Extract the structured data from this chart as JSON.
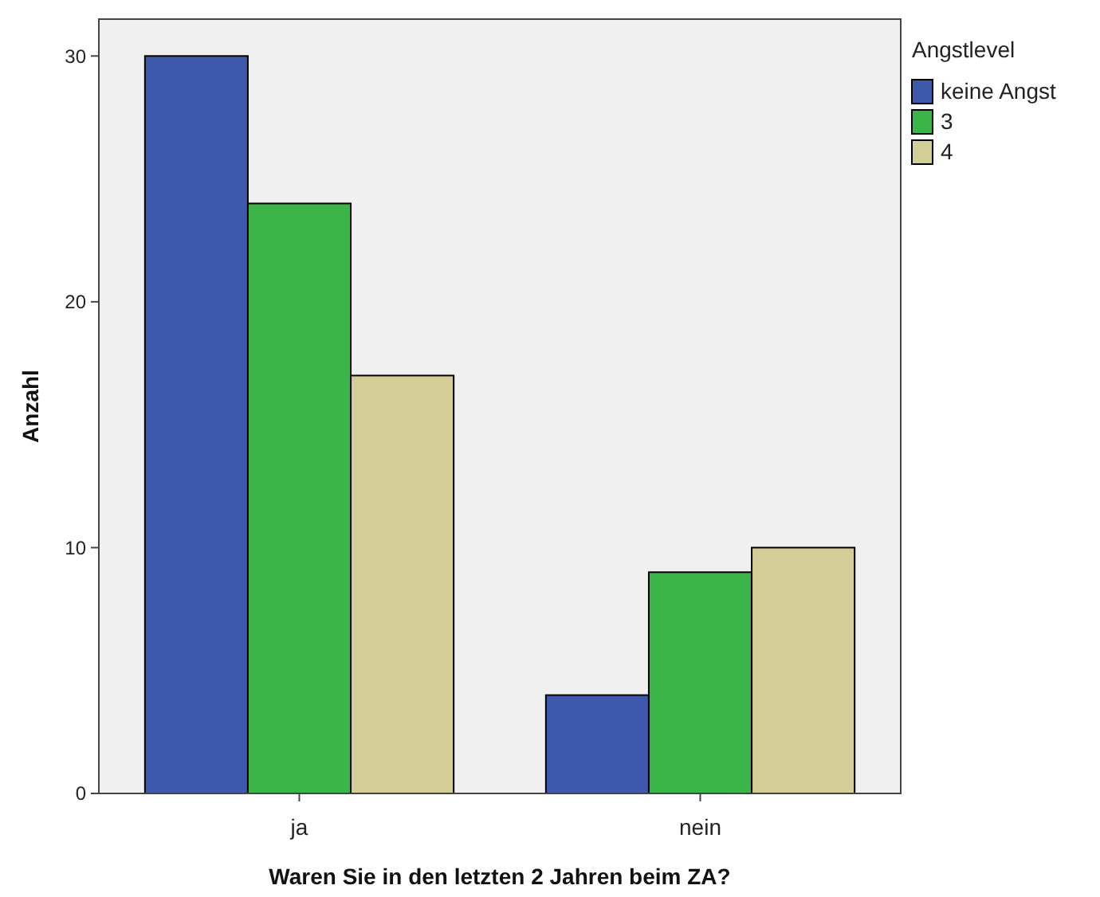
{
  "chart_data": {
    "type": "bar",
    "xlabel": "Waren Sie in den letzten 2 Jahren beim ZA?",
    "ylabel": "Anzahl",
    "legend_title": "Angstlevel",
    "categories": [
      "ja",
      "nein"
    ],
    "series": [
      {
        "name": "keine Angst",
        "color": "#3e58ac",
        "values": [
          30,
          4
        ]
      },
      {
        "name": "3",
        "color": "#3bb44a",
        "values": [
          24,
          9
        ]
      },
      {
        "name": "4",
        "color": "#d3ce97",
        "values": [
          17,
          10
        ]
      }
    ],
    "ylim": [
      0,
      31.5
    ],
    "yticks": [
      0,
      10,
      20,
      30
    ],
    "grid": false,
    "legend": "right"
  }
}
